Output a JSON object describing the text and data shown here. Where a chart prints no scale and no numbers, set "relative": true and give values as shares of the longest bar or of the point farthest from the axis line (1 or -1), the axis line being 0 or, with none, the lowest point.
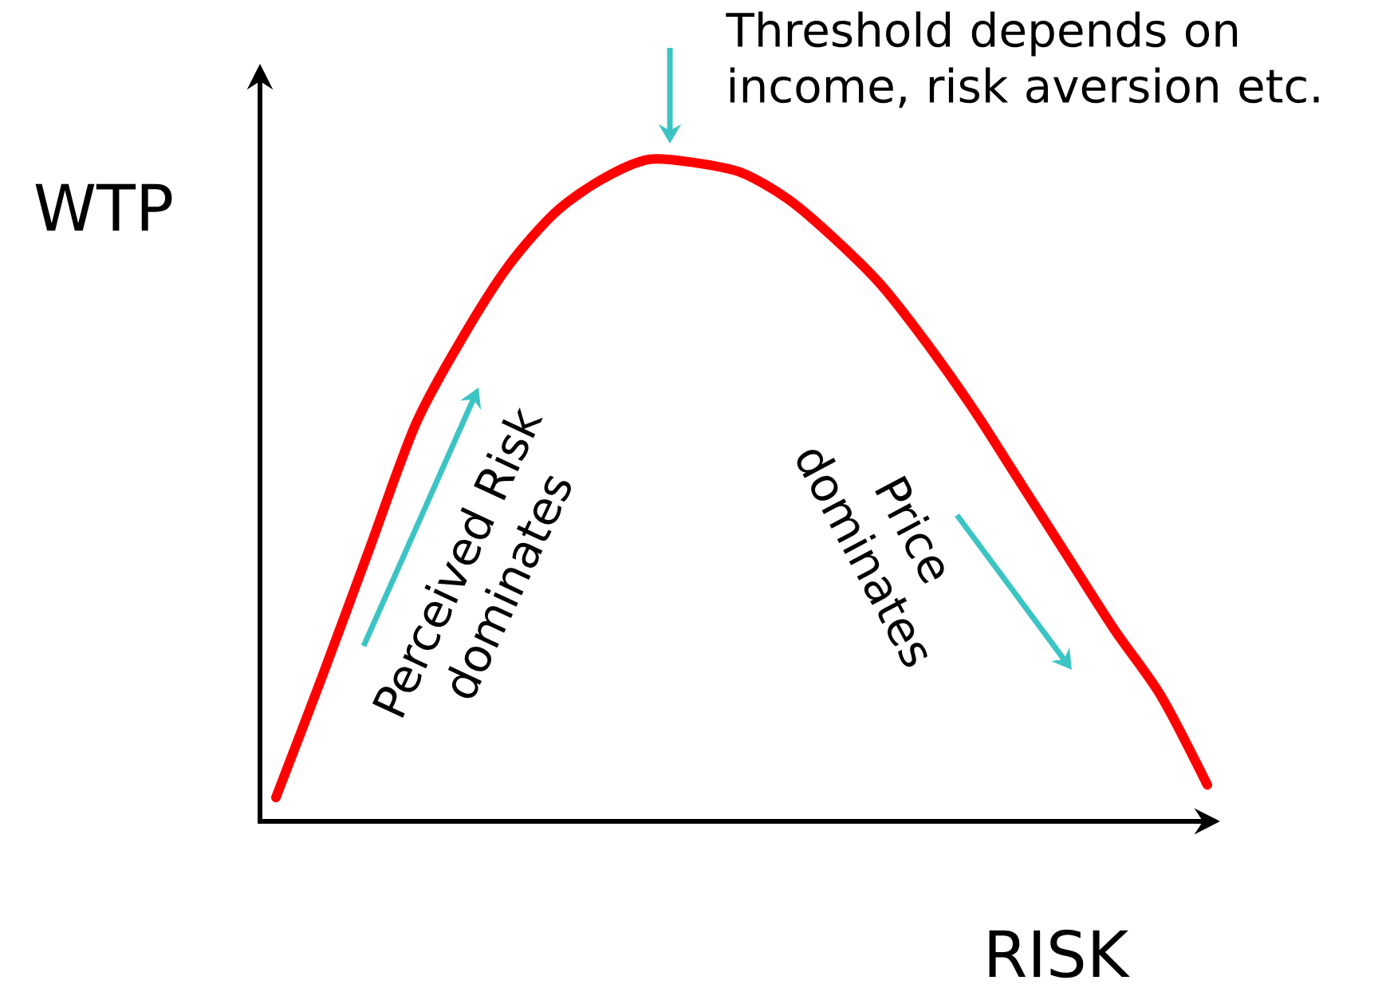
{
  "chart_data": {
    "type": "line",
    "relative": true,
    "xlabel": "RISK",
    "ylabel": "WTP",
    "marker": "none",
    "categories": [
      null,
      null,
      null,
      null,
      null,
      null,
      null,
      null,
      null,
      null,
      null,
      null,
      null,
      null,
      null,
      null,
      null,
      null,
      null,
      null,
      null
    ],
    "series": [
      {
        "color": "#ff0000",
        "values": [
          0.036,
          0.22,
          0.41,
          0.6,
          0.73,
          0.84,
          0.92,
          0.97,
          1.0,
          0.995,
          0.98,
          0.94,
          0.88,
          0.81,
          0.72,
          0.62,
          0.51,
          0.4,
          0.29,
          0.19,
          0.055
        ]
      }
    ],
    "annotations": [
      "Threshold depends on income, risk aversion etc.",
      "Perceived Risk dominates",
      "Price dominates"
    ]
  }
}
